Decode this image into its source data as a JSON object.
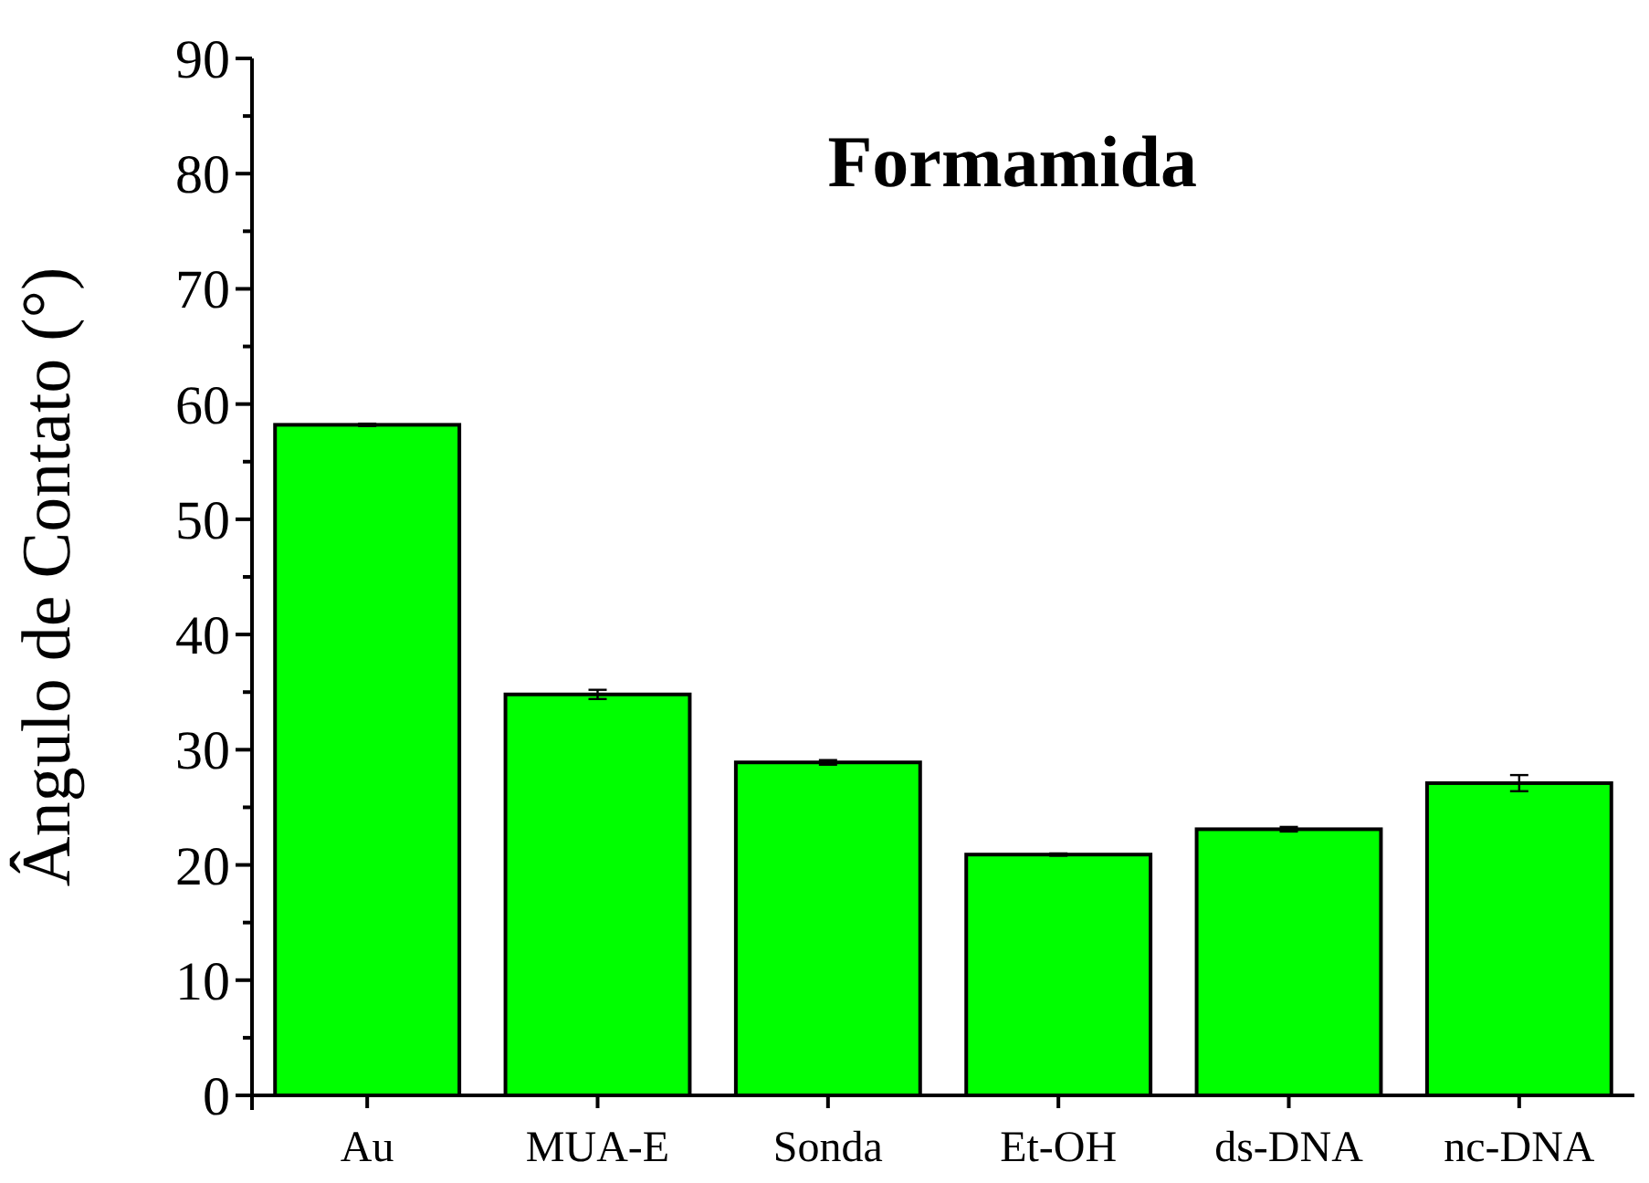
{
  "chart_data": {
    "type": "bar",
    "title": "Formamida",
    "ylabel": "Ângulo de Contato (°)",
    "categories": [
      "Au",
      "MUA-E",
      "Sonda",
      "Et-OH",
      "ds-DNA",
      "nc-DNA"
    ],
    "values": [
      58.2,
      34.8,
      28.9,
      20.9,
      23.1,
      27.1
    ],
    "errors": [
      0.1,
      0.4,
      0.2,
      0.1,
      0.2,
      0.7
    ],
    "color": "#00ff00",
    "ylim": [
      0,
      90
    ],
    "yticks": [
      0,
      10,
      20,
      30,
      40,
      50,
      60,
      70,
      80,
      90
    ],
    "grid": false
  }
}
